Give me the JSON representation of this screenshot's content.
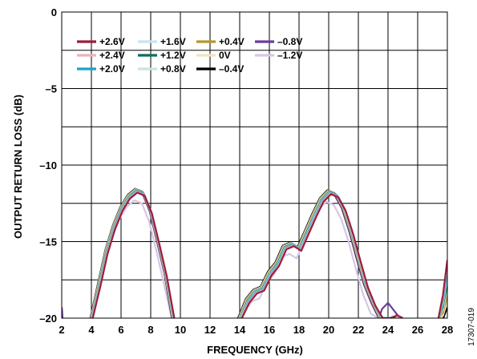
{
  "chart_data": {
    "type": "line",
    "xlabel": "FREQUENCY (GHz)",
    "ylabel": "OUTPUT RETURN LOSS (dB)",
    "xlim": [
      2,
      28
    ],
    "ylim": [
      -20,
      0
    ],
    "xticks": [
      "2",
      "4",
      "6",
      "8",
      "10",
      "12",
      "14",
      "16",
      "18",
      "20",
      "22",
      "24",
      "26",
      "28"
    ],
    "yticks": [
      "0",
      "–5",
      "–10",
      "–15",
      "–20"
    ],
    "grid": true,
    "legend_placement": "top-left",
    "figure_id": "17307-019",
    "series": [
      {
        "name": "+2.6V",
        "color": "#9e1b3c",
        "dx": 0.15,
        "dy": 0.0,
        "tail": [
          [
            24.3,
            -20
          ],
          [
            24.6,
            -19.8
          ],
          [
            25.0,
            -20
          ]
        ],
        "end": -16.2
      },
      {
        "name": "+2.4V",
        "color": "#e8b4b8",
        "dx": 0.12,
        "dy": 0.05,
        "tail": [
          [
            24.3,
            -20
          ],
          [
            24.6,
            -19.9
          ],
          [
            24.9,
            -20
          ]
        ],
        "end": -16.5
      },
      {
        "name": "+2.0V",
        "color": "#1aa3c9",
        "dx": 0.1,
        "dy": 0.1,
        "tail": [
          [
            24.3,
            -20
          ],
          [
            24.6,
            -19.9
          ],
          [
            24.9,
            -20
          ]
        ],
        "end": -16.9
      },
      {
        "name": "+1.6V",
        "color": "#c5e3f2",
        "dx": 0.06,
        "dy": 0.12,
        "tail": [
          [
            24.3,
            -20
          ],
          [
            24.6,
            -19.9
          ],
          [
            24.9,
            -20
          ]
        ],
        "end": -17.3
      },
      {
        "name": "+1.2V",
        "color": "#0f6e5e",
        "dx": 0.03,
        "dy": 0.15,
        "tail": [
          [
            24.3,
            -20
          ],
          [
            24.6,
            -19.9
          ],
          [
            24.9,
            -20
          ]
        ],
        "end": -17.7
      },
      {
        "name": "+0.8V",
        "color": "#c9e5dc",
        "dx": 0.0,
        "dy": 0.18,
        "tail": [
          [
            24.3,
            -20
          ],
          [
            24.6,
            -19.9
          ],
          [
            24.9,
            -20
          ]
        ],
        "end": -18.1
      },
      {
        "name": "+0.4V",
        "color": "#b8962a",
        "dx": -0.03,
        "dy": 0.2,
        "tail": [
          [
            24.2,
            -20
          ],
          [
            24.5,
            -19.9
          ],
          [
            24.8,
            -20
          ]
        ],
        "end": -18.5
      },
      {
        "name": "0V",
        "color": "#f0e4c0",
        "dx": -0.06,
        "dy": 0.22,
        "tail": [
          [
            24.2,
            -20
          ],
          [
            24.5,
            -19.9
          ],
          [
            24.8,
            -20
          ]
        ],
        "end": -18.9
      },
      {
        "name": "–0.4V",
        "color": "#000000",
        "dx": -0.09,
        "dy": 0.25,
        "tail": [
          [
            24.1,
            -20
          ],
          [
            24.4,
            -19.9
          ],
          [
            24.7,
            -20
          ]
        ],
        "end": -19.3
      },
      {
        "name": "–0.8V",
        "color": "#6a3d9a",
        "dx": -0.12,
        "dy": 0.18,
        "tail": [
          [
            23.6,
            -19.4
          ],
          [
            24.0,
            -19.0
          ],
          [
            24.4,
            -19.5
          ],
          [
            24.8,
            -20
          ]
        ],
        "end": -20.0
      },
      {
        "name": "–1.2V",
        "color": "#d6c6e3",
        "dx": -0.16,
        "dy": -0.5,
        "tail": [
          [
            23.3,
            -19.7
          ],
          [
            23.7,
            -20
          ]
        ],
        "end": -20.0
      }
    ],
    "base_lobe1": [
      [
        4.0,
        -20.0
      ],
      [
        4.5,
        -18.0
      ],
      [
        5.0,
        -15.8
      ],
      [
        5.5,
        -14.2
      ],
      [
        6.0,
        -13.0
      ],
      [
        6.5,
        -12.2
      ],
      [
        7.0,
        -11.8
      ],
      [
        7.5,
        -12.0
      ],
      [
        8.0,
        -13.2
      ],
      [
        8.5,
        -15.2
      ],
      [
        9.0,
        -17.3
      ],
      [
        9.5,
        -20.0
      ]
    ],
    "base_lobe2": [
      [
        14.0,
        -20.0
      ],
      [
        14.5,
        -19.0
      ],
      [
        15.0,
        -18.4
      ],
      [
        15.5,
        -18.2
      ],
      [
        16.0,
        -17.2
      ],
      [
        16.5,
        -16.6
      ],
      [
        17.0,
        -15.5
      ],
      [
        17.5,
        -15.3
      ],
      [
        18.0,
        -15.6
      ],
      [
        18.5,
        -14.5
      ],
      [
        19.0,
        -13.4
      ],
      [
        19.5,
        -12.4
      ],
      [
        20.0,
        -11.9
      ],
      [
        20.5,
        -12.1
      ],
      [
        21.0,
        -13.0
      ],
      [
        21.5,
        -14.5
      ],
      [
        22.0,
        -16.3
      ],
      [
        22.5,
        -18.0
      ],
      [
        23.0,
        -19.2
      ],
      [
        23.5,
        -20.0
      ]
    ],
    "base_lobe3_x": [
      27.4,
      27.7,
      28.0
    ]
  }
}
